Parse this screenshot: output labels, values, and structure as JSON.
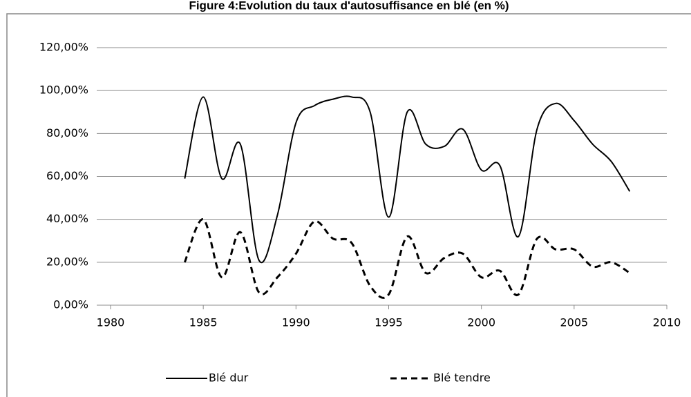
{
  "chart_data": {
    "type": "line",
    "title": "Figure 4:Evolution du taux d'autosuffisance en blé (en %)",
    "x": [
      1984,
      1985,
      1986,
      1987,
      1988,
      1989,
      1990,
      1991,
      1992,
      1993,
      1994,
      1995,
      1996,
      1997,
      1998,
      1999,
      2000,
      2001,
      2002,
      2003,
      2004,
      2005,
      2006,
      2007,
      2008
    ],
    "series": [
      {
        "name": "Blé dur",
        "color": "#000000",
        "dash": "solid",
        "values": [
          59,
          97,
          59,
          75,
          21,
          42,
          85,
          93,
          96,
          97,
          90,
          41,
          90,
          75,
          74,
          82,
          63,
          65,
          32,
          82,
          94,
          86,
          75,
          67,
          53
        ]
      },
      {
        "name": "Blé tendre",
        "color": "#000000",
        "dash": "dashed",
        "values": [
          20,
          40,
          13,
          34,
          6,
          13,
          24,
          39,
          31,
          29,
          9,
          5,
          32,
          15,
          22,
          24,
          13,
          16,
          5,
          31,
          26,
          26,
          18,
          20,
          15
        ]
      }
    ],
    "xlim": [
      1980,
      2010
    ],
    "xticks": [
      1980,
      1985,
      1990,
      1995,
      2000,
      2005,
      2010
    ],
    "ylim": [
      0,
      120
    ],
    "yticks": [
      {
        "value": 0,
        "label": "0,00%"
      },
      {
        "value": 20,
        "label": "20,00%"
      },
      {
        "value": 40,
        "label": "40,00%"
      },
      {
        "value": 60,
        "label": "60,00%"
      },
      {
        "value": 80,
        "label": "80,00%"
      },
      {
        "value": 100,
        "label": "100,00%"
      },
      {
        "value": 120,
        "label": "120,00%"
      }
    ],
    "grid": true,
    "legend": "bottom"
  }
}
